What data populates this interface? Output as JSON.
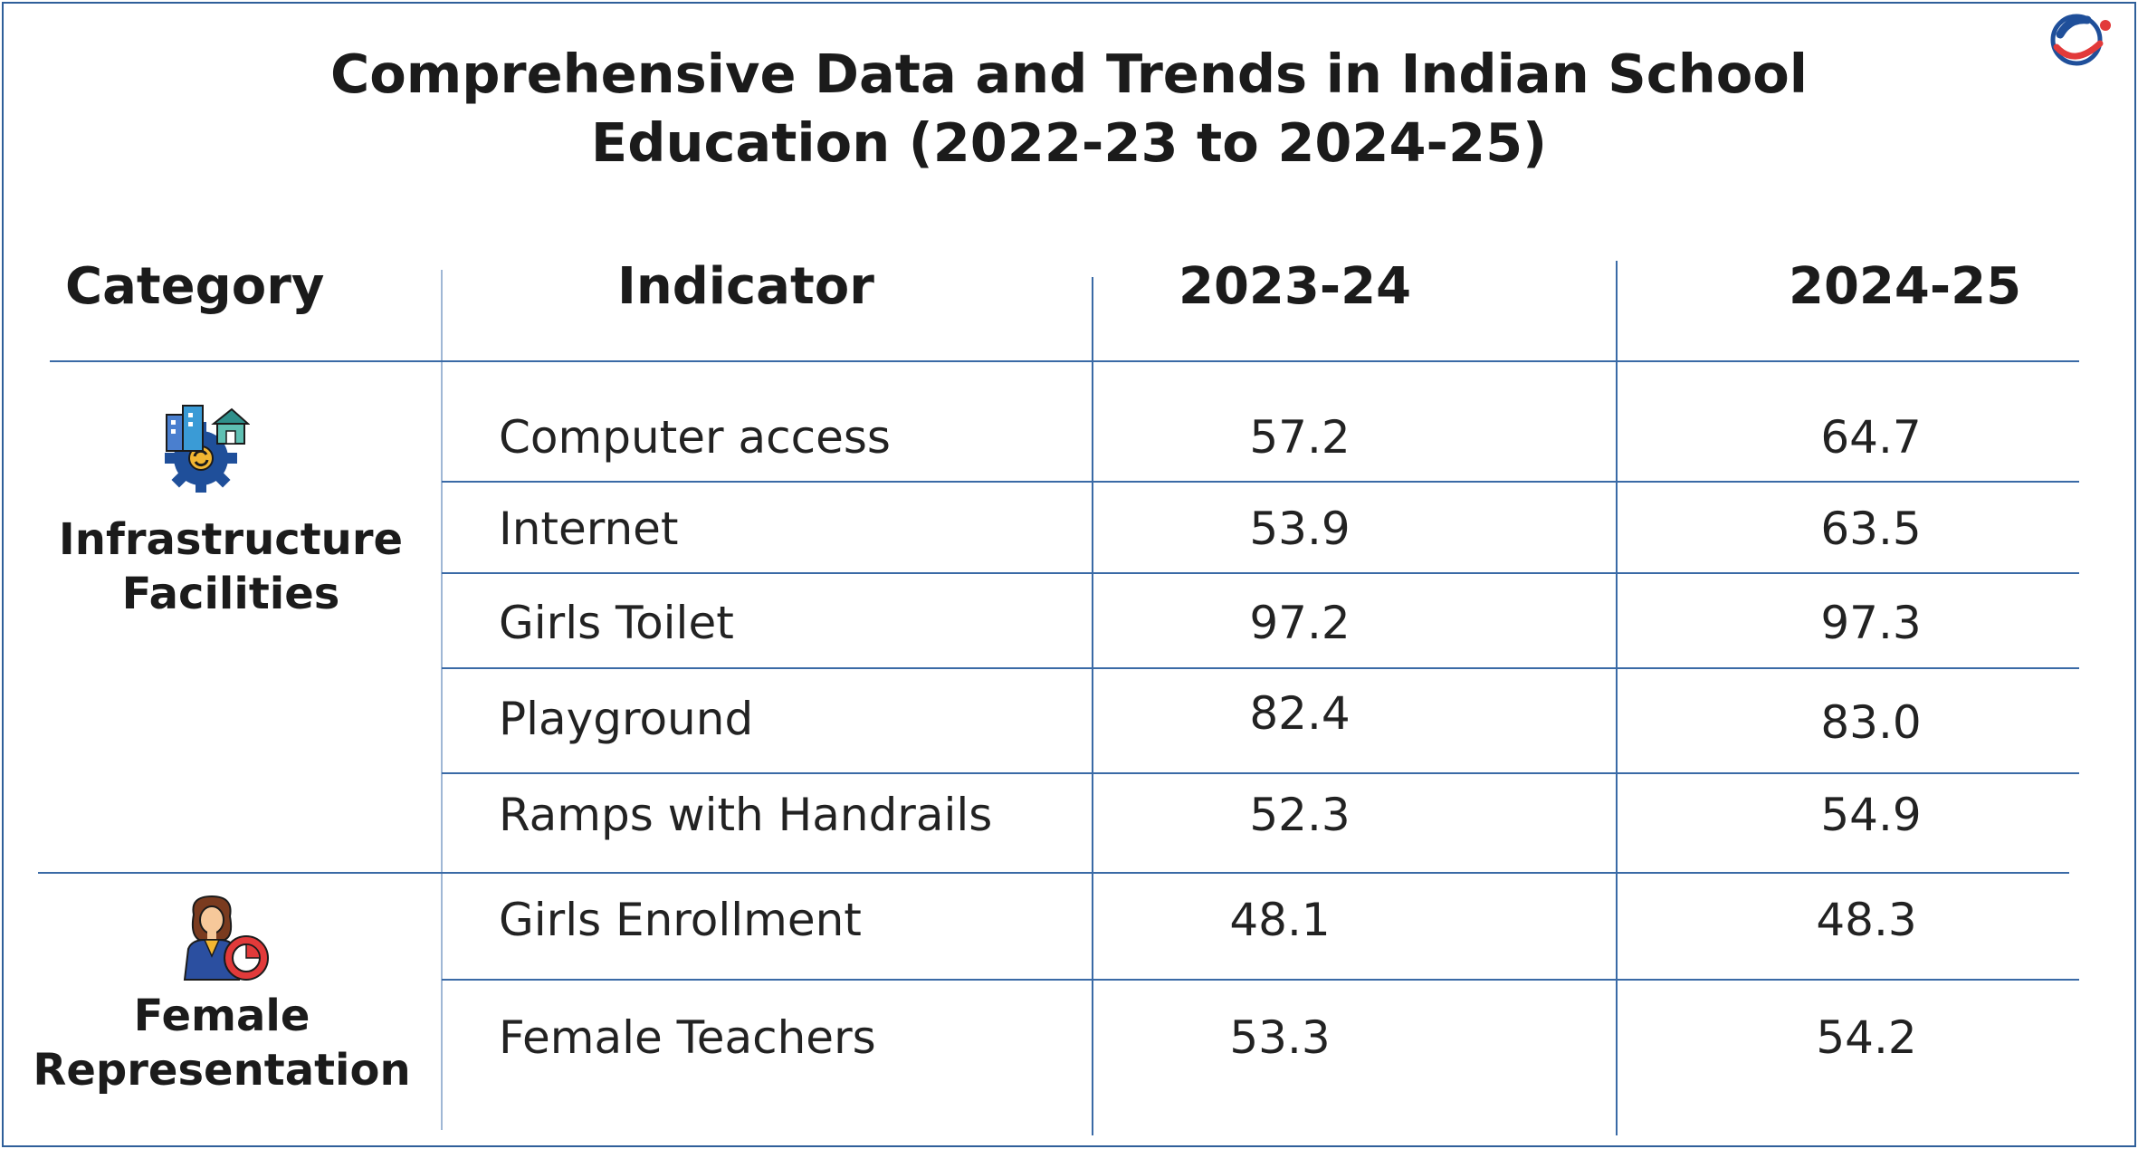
{
  "title_line1": "Comprehensive Data and Trends in Indian School",
  "title_line2": "Education (2022-23 to 2024-25)",
  "headers": {
    "category": "Category",
    "indicator": "Indicator",
    "year1": "2023-24",
    "year2": "2024-25"
  },
  "groups": [
    {
      "label_line1": "Infrastructure",
      "label_line2": "Facilities",
      "icon": "infrastructure-icon",
      "rows": [
        {
          "indicator": "Computer access",
          "y1": "57.2",
          "y2": "64.7"
        },
        {
          "indicator": "Internet",
          "y1": "53.9",
          "y2": "63.5"
        },
        {
          "indicator": "Girls Toilet",
          "y1": "97.2",
          "y2": "97.3"
        },
        {
          "indicator": "Playground",
          "y1": "82.4",
          "y2": "83.0"
        },
        {
          "indicator": "Ramps with Handrails",
          "y1": "52.3",
          "y2": "54.9"
        }
      ]
    },
    {
      "label_line1": "Female",
      "label_line2": "Representation",
      "icon": "female-teacher-chart-icon",
      "rows": [
        {
          "indicator": "Girls Enrollment",
          "y1": "48.1",
          "y2": "48.3"
        },
        {
          "indicator": "Female Teachers",
          "y1": "53.3",
          "y2": "54.2"
        }
      ]
    }
  ],
  "colors": {
    "grid": "#3a6aa6",
    "logo_blue": "#1f4f9a",
    "logo_red": "#e23a3a"
  }
}
